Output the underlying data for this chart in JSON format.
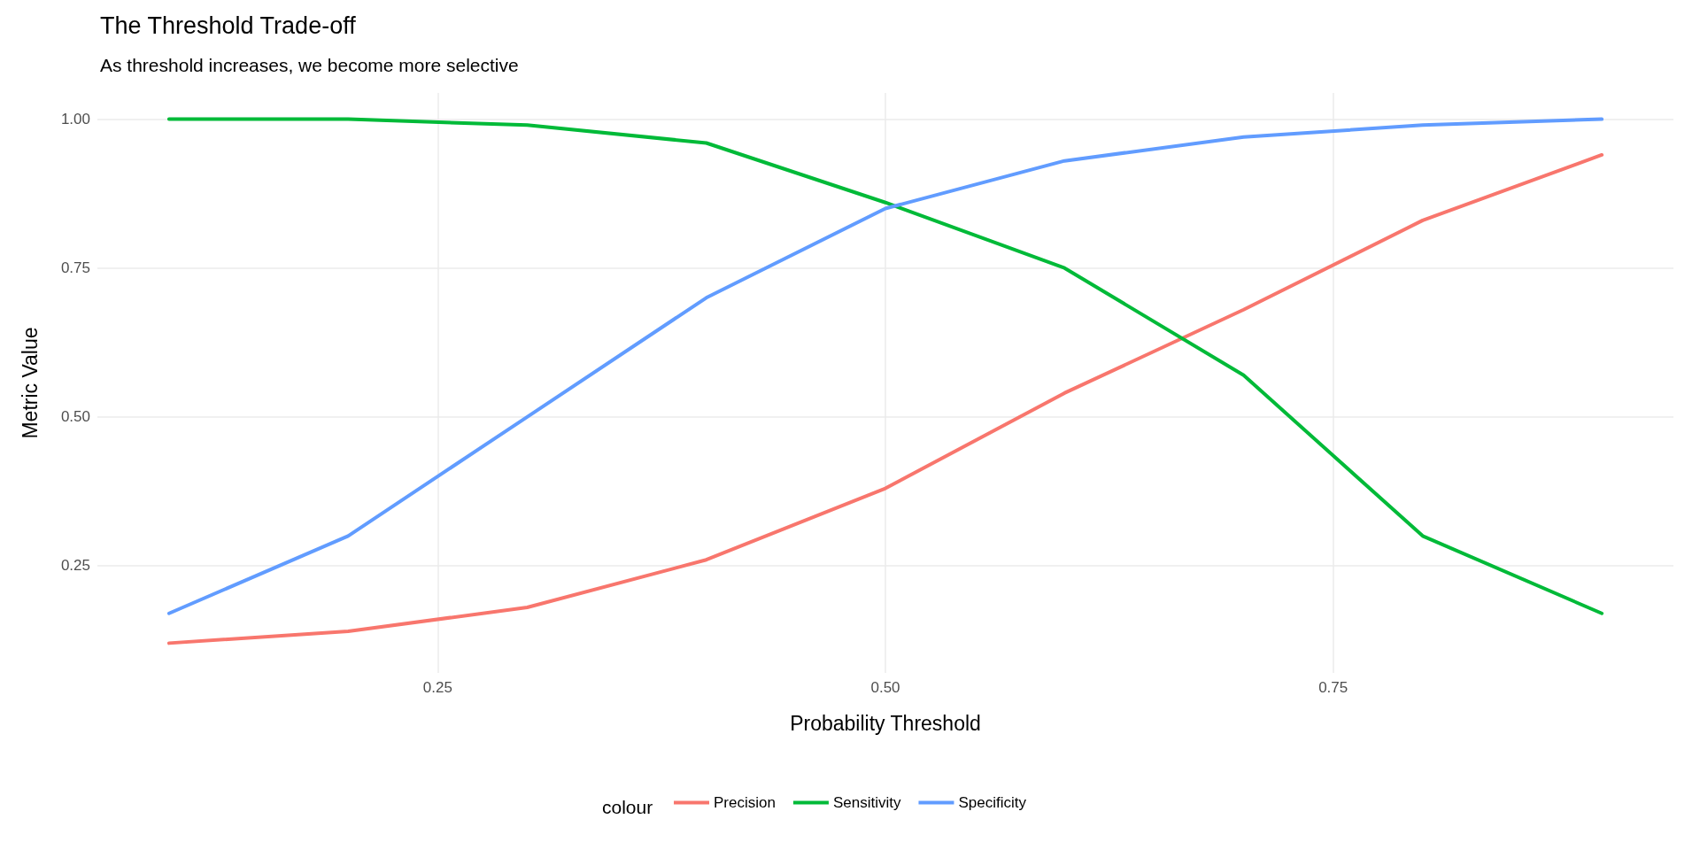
{
  "chart_data": {
    "type": "line",
    "title": "The Threshold Trade-off",
    "subtitle": "As threshold increases, we become more selective",
    "xlabel": "Probability Threshold",
    "ylabel": "Metric Value",
    "legend_title": "colour",
    "x": [
      0.1,
      0.2,
      0.3,
      0.4,
      0.5,
      0.6,
      0.7,
      0.8,
      0.9
    ],
    "series": [
      {
        "name": "Precision",
        "color": "#f8766d",
        "values": [
          0.12,
          0.14,
          0.18,
          0.26,
          0.38,
          0.54,
          0.68,
          0.83,
          0.94
        ]
      },
      {
        "name": "Sensitivity",
        "color": "#00ba38",
        "values": [
          1.0,
          1.0,
          0.99,
          0.96,
          0.86,
          0.75,
          0.57,
          0.3,
          0.17
        ]
      },
      {
        "name": "Specificity",
        "color": "#619cff",
        "values": [
          0.17,
          0.3,
          0.5,
          0.7,
          0.85,
          0.93,
          0.97,
          0.99,
          1.0
        ]
      }
    ],
    "xlim": [
      0.06,
      0.94
    ],
    "ylim": [
      0.07,
      1.044
    ],
    "xticks": [
      0.25,
      {
        "value": 0.5,
        "label": "0.50"
      },
      0.75
    ],
    "yticks": [
      0.25,
      {
        "value": 0.5,
        "label": "0.50"
      },
      0.75,
      {
        "value": 1,
        "label": "1.00"
      }
    ],
    "grid": true,
    "legend": "bottom",
    "marker": "none",
    "line_style": "solid"
  }
}
